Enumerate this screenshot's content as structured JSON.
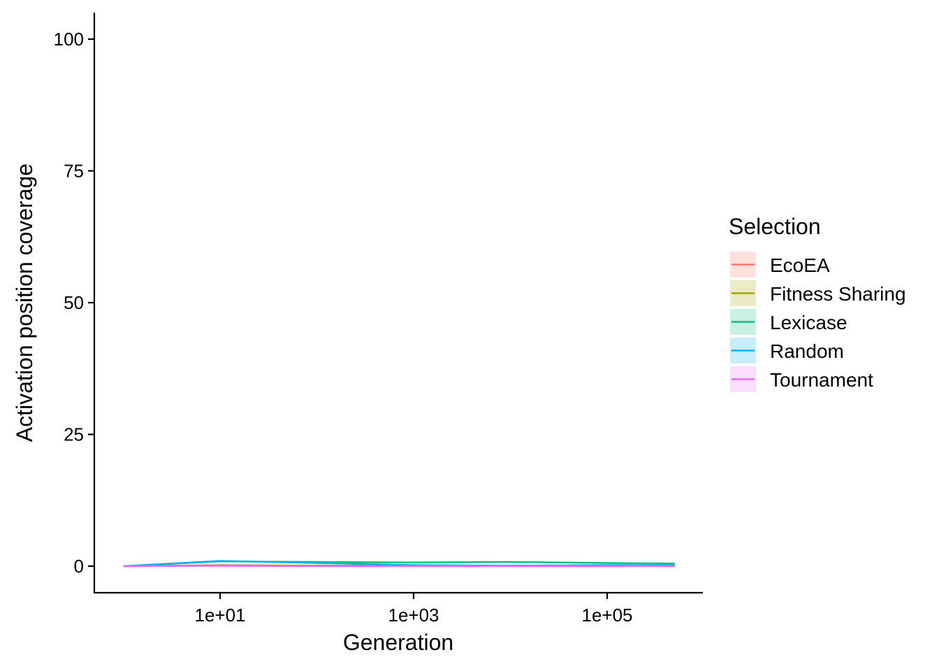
{
  "chart_data": {
    "type": "line",
    "xlabel": "Generation",
    "ylabel": "Activation position coverage",
    "x_scale": "log10",
    "xlim": [
      1,
      500000
    ],
    "ylim": [
      0,
      100
    ],
    "x_ticks": [
      10,
      1000,
      100000
    ],
    "x_tick_labels": [
      "1e+01",
      "1e+03",
      "1e+05"
    ],
    "y_ticks": [
      0,
      25,
      50,
      75,
      100
    ],
    "y_tick_labels": [
      "0",
      "25",
      "50",
      "75",
      "100"
    ],
    "grid": false,
    "legend": {
      "title": "Selection",
      "position": "right"
    },
    "series": [
      {
        "name": "EcoEA",
        "color": "#F8766D",
        "x": [
          1,
          10,
          100,
          1000,
          10000,
          100000,
          500000
        ],
        "y": [
          0,
          0.2,
          0.1,
          0.1,
          0.1,
          0.1,
          0.1
        ]
      },
      {
        "name": "Fitness Sharing",
        "color": "#A3A500",
        "x": [
          1,
          10,
          100,
          1000,
          10000,
          100000,
          500000
        ],
        "y": [
          0,
          0.1,
          0.1,
          0.1,
          0.1,
          0.1,
          0.1
        ]
      },
      {
        "name": "Lexicase",
        "color": "#00BF7D",
        "x": [
          1,
          10,
          100,
          1000,
          10000,
          100000,
          500000
        ],
        "y": [
          0,
          0.9,
          0.8,
          0.7,
          0.8,
          0.6,
          0.5
        ]
      },
      {
        "name": "Random",
        "color": "#00B0F6",
        "x": [
          1,
          10,
          100,
          1000,
          10000,
          100000,
          500000
        ],
        "y": [
          0,
          1.0,
          0.6,
          0.2,
          0.1,
          0.2,
          0.2
        ]
      },
      {
        "name": "Tournament",
        "color": "#E76BF3",
        "x": [
          1,
          10,
          100,
          1000,
          10000,
          100000,
          500000
        ],
        "y": [
          0,
          0.05,
          0.0,
          0.0,
          0.0,
          0.0,
          0.0
        ]
      }
    ]
  }
}
